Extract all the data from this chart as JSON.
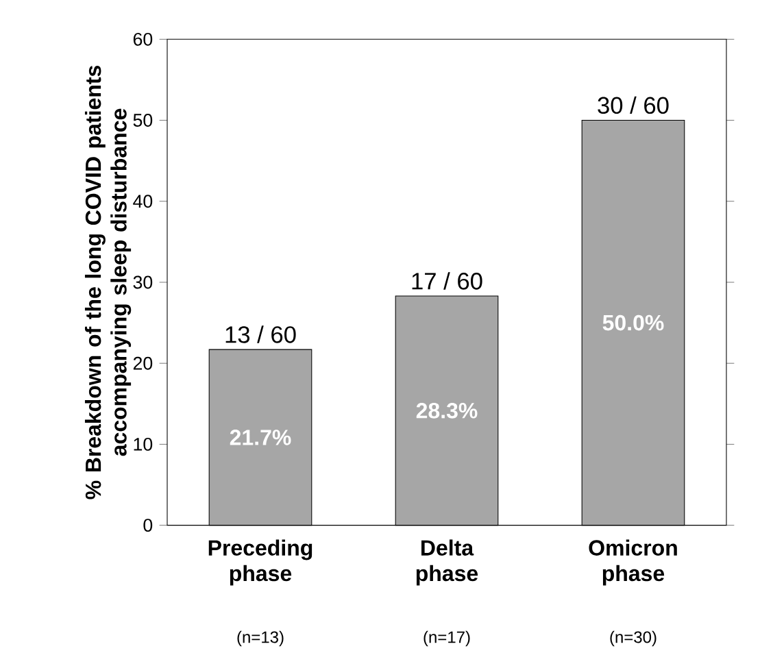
{
  "chart_data": {
    "type": "bar",
    "ylabel": "% Breakdown of the long COVID patients accompanying sleep disturbance",
    "categories": [
      "Preceding phase",
      "Delta phase",
      "Omicron phase"
    ],
    "values": [
      21.7,
      28.3,
      50.0
    ],
    "value_labels": [
      "21.7%",
      "28.3%",
      "50.0%"
    ],
    "color": "#a6a6a6",
    "ylim": [
      0,
      60
    ],
    "yticks": [
      0,
      10,
      20,
      30,
      40,
      50,
      60
    ],
    "grid": false,
    "annotations": [
      {
        "text": "13 / 60",
        "x": "Preceding phase",
        "y": 21.7
      },
      {
        "text": "17 / 60",
        "x": "Delta phase",
        "y": 28.3
      },
      {
        "text": "30 / 60",
        "x": "Omicron phase",
        "y": 50.0
      },
      "(n=13)",
      "(n=17)",
      "(n=30)"
    ]
  }
}
